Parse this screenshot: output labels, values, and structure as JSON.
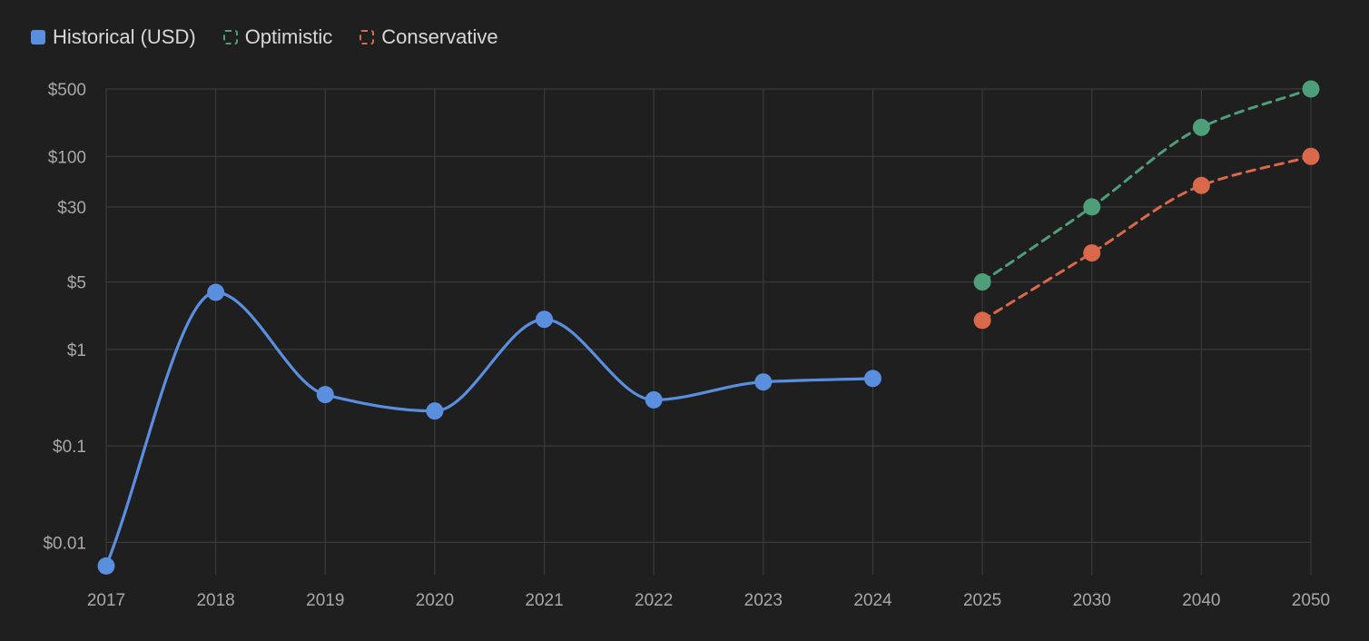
{
  "legend": {
    "historical": "Historical (USD)",
    "optimistic": "Optimistic",
    "conservative": "Conservative"
  },
  "colors": {
    "background": "#1f1f1f",
    "grid": "#3a3a3a",
    "historical": "#5a8fe0",
    "optimistic": "#4f9e7a",
    "conservative": "#d9694a",
    "tick_text": "#a8a8a8"
  },
  "chart_data": {
    "type": "line",
    "categories": [
      "2017",
      "2018",
      "2019",
      "2020",
      "2021",
      "2022",
      "2023",
      "2024",
      "2025",
      "2030",
      "2040",
      "2050"
    ],
    "y_scale": "log",
    "ylim": [
      0.0055,
      500
    ],
    "y_ticks": [
      {
        "value": 500,
        "label": "$500"
      },
      {
        "value": 100,
        "label": "$100"
      },
      {
        "value": 30,
        "label": "$30"
      },
      {
        "value": 5,
        "label": "$5"
      },
      {
        "value": 1,
        "label": "$1"
      },
      {
        "value": 0.1,
        "label": "$0.1"
      },
      {
        "value": 0.01,
        "label": "$0.01"
      }
    ],
    "grid": true,
    "legend_position": "top-left",
    "series": [
      {
        "key": "historical",
        "name": "Historical (USD)",
        "style": "solid",
        "smooth": true,
        "values": [
          0.0057,
          3.9,
          0.34,
          0.23,
          2.05,
          0.3,
          0.46,
          0.5,
          null,
          null,
          null,
          null
        ]
      },
      {
        "key": "optimistic",
        "name": "Optimistic",
        "style": "dashed",
        "smooth": true,
        "values": [
          null,
          null,
          null,
          null,
          null,
          null,
          null,
          null,
          5,
          30,
          200,
          500
        ]
      },
      {
        "key": "conservative",
        "name": "Conservative",
        "style": "dashed",
        "smooth": true,
        "values": [
          null,
          null,
          null,
          null,
          null,
          null,
          null,
          null,
          2,
          10,
          50,
          100
        ]
      }
    ]
  }
}
